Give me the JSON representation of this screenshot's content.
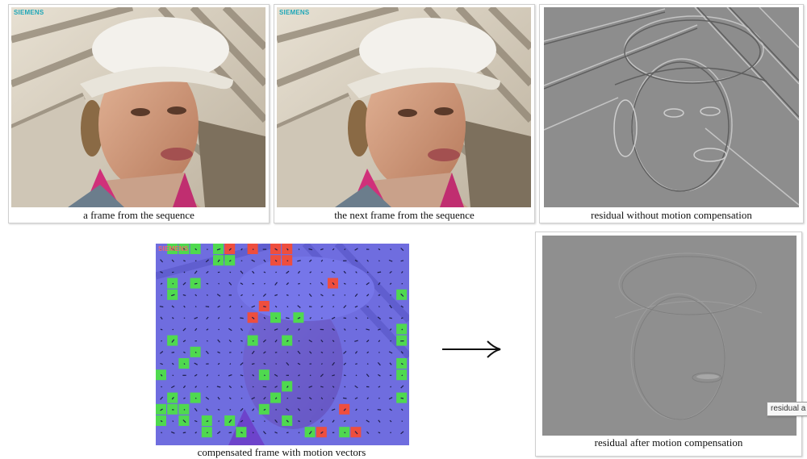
{
  "logo_text": "SIEMENS",
  "panels": {
    "frame": {
      "caption": "a frame from the sequence"
    },
    "next_frame": {
      "caption": "the next frame from the sequence"
    },
    "residual_no_mc": {
      "caption": "residual without motion compensation"
    },
    "compensated": {
      "caption": "compensated frame with motion vectors"
    },
    "residual_mc": {
      "caption": "residual after motion compensation"
    }
  },
  "tooltip": "residual a",
  "colors": {
    "overlay_blue": "#5a5ae6",
    "block_green": "#4fd94f",
    "block_red": "#ee4e3e",
    "residual_gray": "#8d8d8d"
  }
}
